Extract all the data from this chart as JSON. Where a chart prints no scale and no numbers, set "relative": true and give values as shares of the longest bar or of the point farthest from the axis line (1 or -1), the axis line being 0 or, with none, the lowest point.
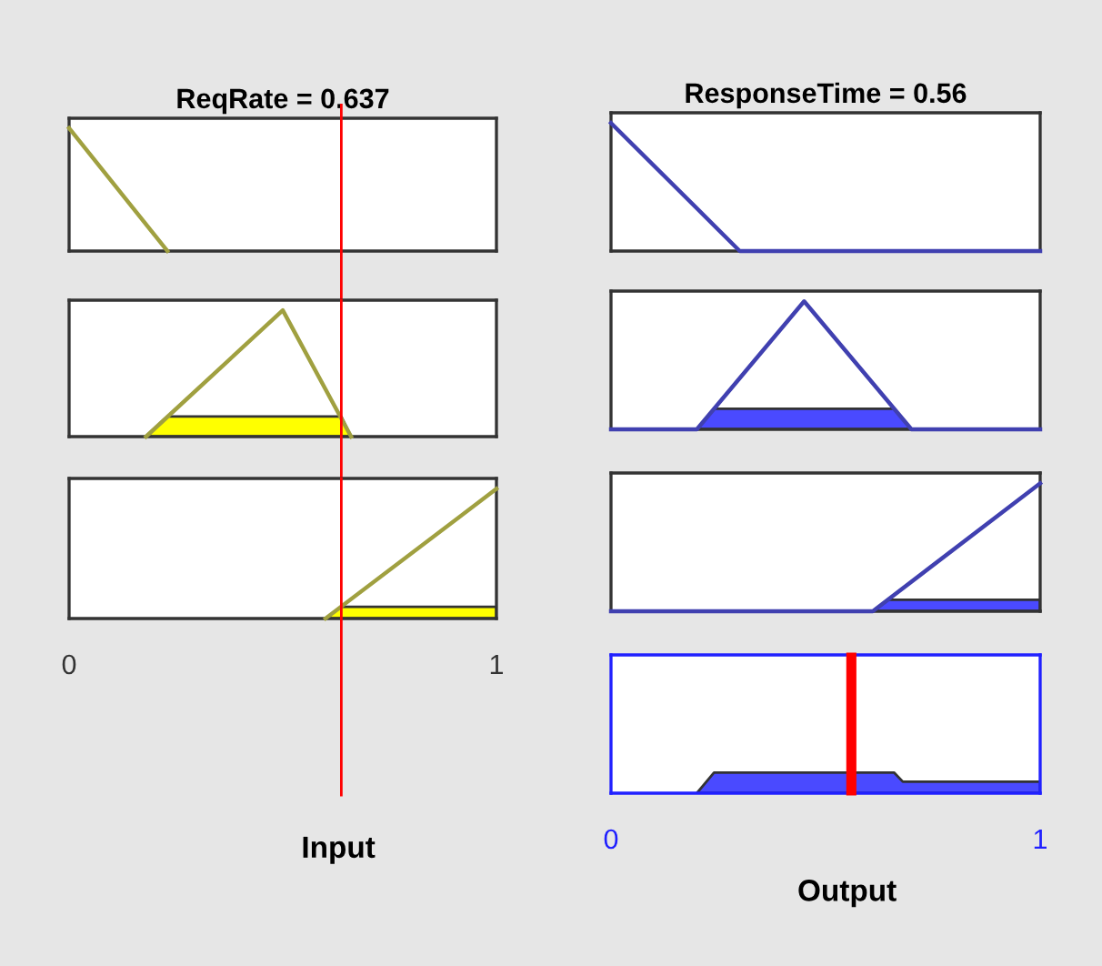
{
  "chart_data": [
    {
      "type": "line",
      "relative": true,
      "title": "ReqRate = 0.637",
      "xlim": [
        0,
        1
      ],
      "tick_labels": false,
      "ref_lines": [
        {
          "axis": "x",
          "value": 0.637,
          "color": "#ff0000"
        }
      ],
      "series": [
        {
          "color": "#a0a040",
          "x": [
            0,
            0.23
          ],
          "values": [
            1,
            0
          ]
        }
      ]
    },
    {
      "type": "area",
      "relative": true,
      "xlim": [
        0,
        1
      ],
      "tick_labels": false,
      "ref_lines": [
        {
          "axis": "x",
          "value": 0.637,
          "color": "#ff0000"
        }
      ],
      "series": [
        {
          "type": "line",
          "color": "#a0a040",
          "x": [
            0.18,
            0.5,
            0.66
          ],
          "values": [
            0,
            1,
            0
          ]
        },
        {
          "color": "#ffff00",
          "x": [
            0.18,
            0.23,
            0.637,
            0.66
          ],
          "values": [
            0,
            0.16,
            0.16,
            0
          ]
        }
      ]
    },
    {
      "type": "area",
      "relative": true,
      "xlim": [
        0,
        1
      ],
      "xticks": [
        0,
        1
      ],
      "xlabel": "Input",
      "tick_labels": "x",
      "ref_lines": [
        {
          "axis": "x",
          "value": 0.637,
          "color": "#ff0000"
        }
      ],
      "series": [
        {
          "type": "line",
          "color": "#a0a040",
          "x": [
            0.6,
            1
          ],
          "values": [
            0,
            1
          ]
        },
        {
          "color": "#ffff00",
          "x": [
            0.6,
            0.637,
            1,
            1
          ],
          "values": [
            0,
            0.09,
            0.09,
            0
          ]
        }
      ]
    },
    {
      "type": "line",
      "relative": true,
      "title": "ResponseTime = 0.56",
      "xlim": [
        0,
        1
      ],
      "tick_labels": false,
      "series": [
        {
          "color": "#4040b0",
          "x": [
            0,
            0.3,
            1
          ],
          "values": [
            1,
            0,
            0
          ]
        }
      ]
    },
    {
      "type": "area",
      "relative": true,
      "xlim": [
        0,
        1
      ],
      "tick_labels": false,
      "series": [
        {
          "type": "line",
          "color": "#4040b0",
          "x": [
            0,
            0.2,
            0.45,
            0.7,
            1
          ],
          "values": [
            0,
            0,
            1,
            0,
            0
          ]
        },
        {
          "color": "#4a4aff",
          "x": [
            0.2,
            0.24,
            0.66,
            0.7
          ],
          "values": [
            0,
            0.16,
            0.16,
            0
          ]
        }
      ]
    },
    {
      "type": "area",
      "relative": true,
      "xlim": [
        0,
        1
      ],
      "tick_labels": false,
      "series": [
        {
          "type": "line",
          "color": "#4040b0",
          "x": [
            0,
            0.61,
            1
          ],
          "values": [
            0,
            0,
            1
          ]
        },
        {
          "color": "#4a4aff",
          "x": [
            0.61,
            0.647,
            1,
            1
          ],
          "values": [
            0,
            0.09,
            0.09,
            0
          ]
        }
      ]
    },
    {
      "type": "area",
      "relative": true,
      "xlim": [
        0,
        1
      ],
      "xticks": [
        0,
        1
      ],
      "xlabel": "Output",
      "tick_labels": "x",
      "ref_lines": [
        {
          "axis": "x",
          "value": 0.56,
          "color": "#ff0000"
        }
      ],
      "series": [
        {
          "color": "#4a4aff",
          "x": [
            0.2,
            0.24,
            0.66,
            0.68,
            1,
            1
          ],
          "values": [
            0,
            1,
            1,
            0.56,
            0.56,
            0
          ]
        }
      ]
    }
  ]
}
